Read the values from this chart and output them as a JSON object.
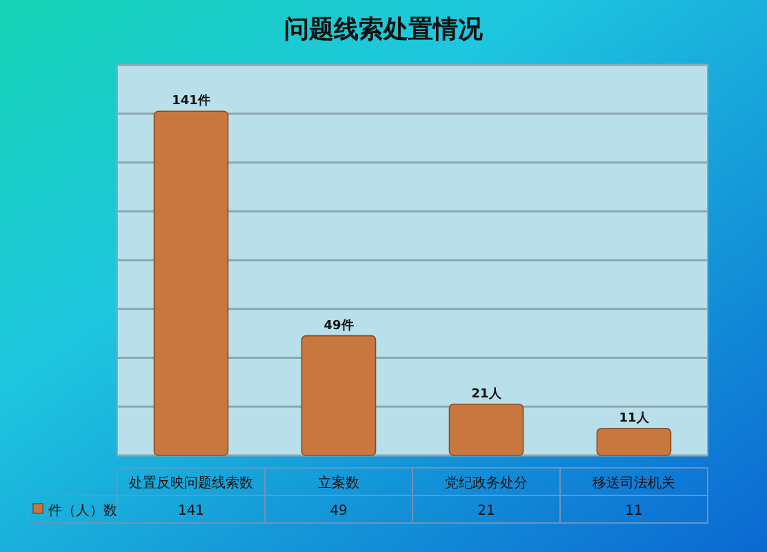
{
  "chart_data": {
    "type": "bar",
    "title": "问题线索处置情况",
    "categories": [
      "处置反映问题线索数",
      "立案数",
      "党纪政务处分",
      "移送司法机关"
    ],
    "series": [
      {
        "name": "件（人）数",
        "color": "#c8783f",
        "values": [
          141,
          49,
          21,
          11
        ]
      }
    ],
    "annotations": [
      {
        "text": "141件",
        "x": "处置反映问题线索数",
        "y": 141
      },
      {
        "text": "49件",
        "x": "立案数",
        "y": 49
      },
      {
        "text": "21人",
        "x": "党纪政务处分",
        "y": 21
      },
      {
        "text": "11人",
        "x": "移送司法机关",
        "y": 11
      }
    ],
    "ylim": [
      0,
      160
    ],
    "yticks": [
      {
        "value": 0,
        "label": null
      },
      {
        "value": 20,
        "label": null
      },
      {
        "value": 40,
        "label": null
      },
      {
        "value": 60,
        "label": null
      },
      {
        "value": 80,
        "label": null
      },
      {
        "value": 100,
        "label": null
      },
      {
        "value": 120,
        "label": null
      },
      {
        "value": 140,
        "label": null
      },
      {
        "value": 160,
        "label": null
      }
    ],
    "grid": "y",
    "tick_labels": "x",
    "legend": "bottom left",
    "data_labels": true
  }
}
